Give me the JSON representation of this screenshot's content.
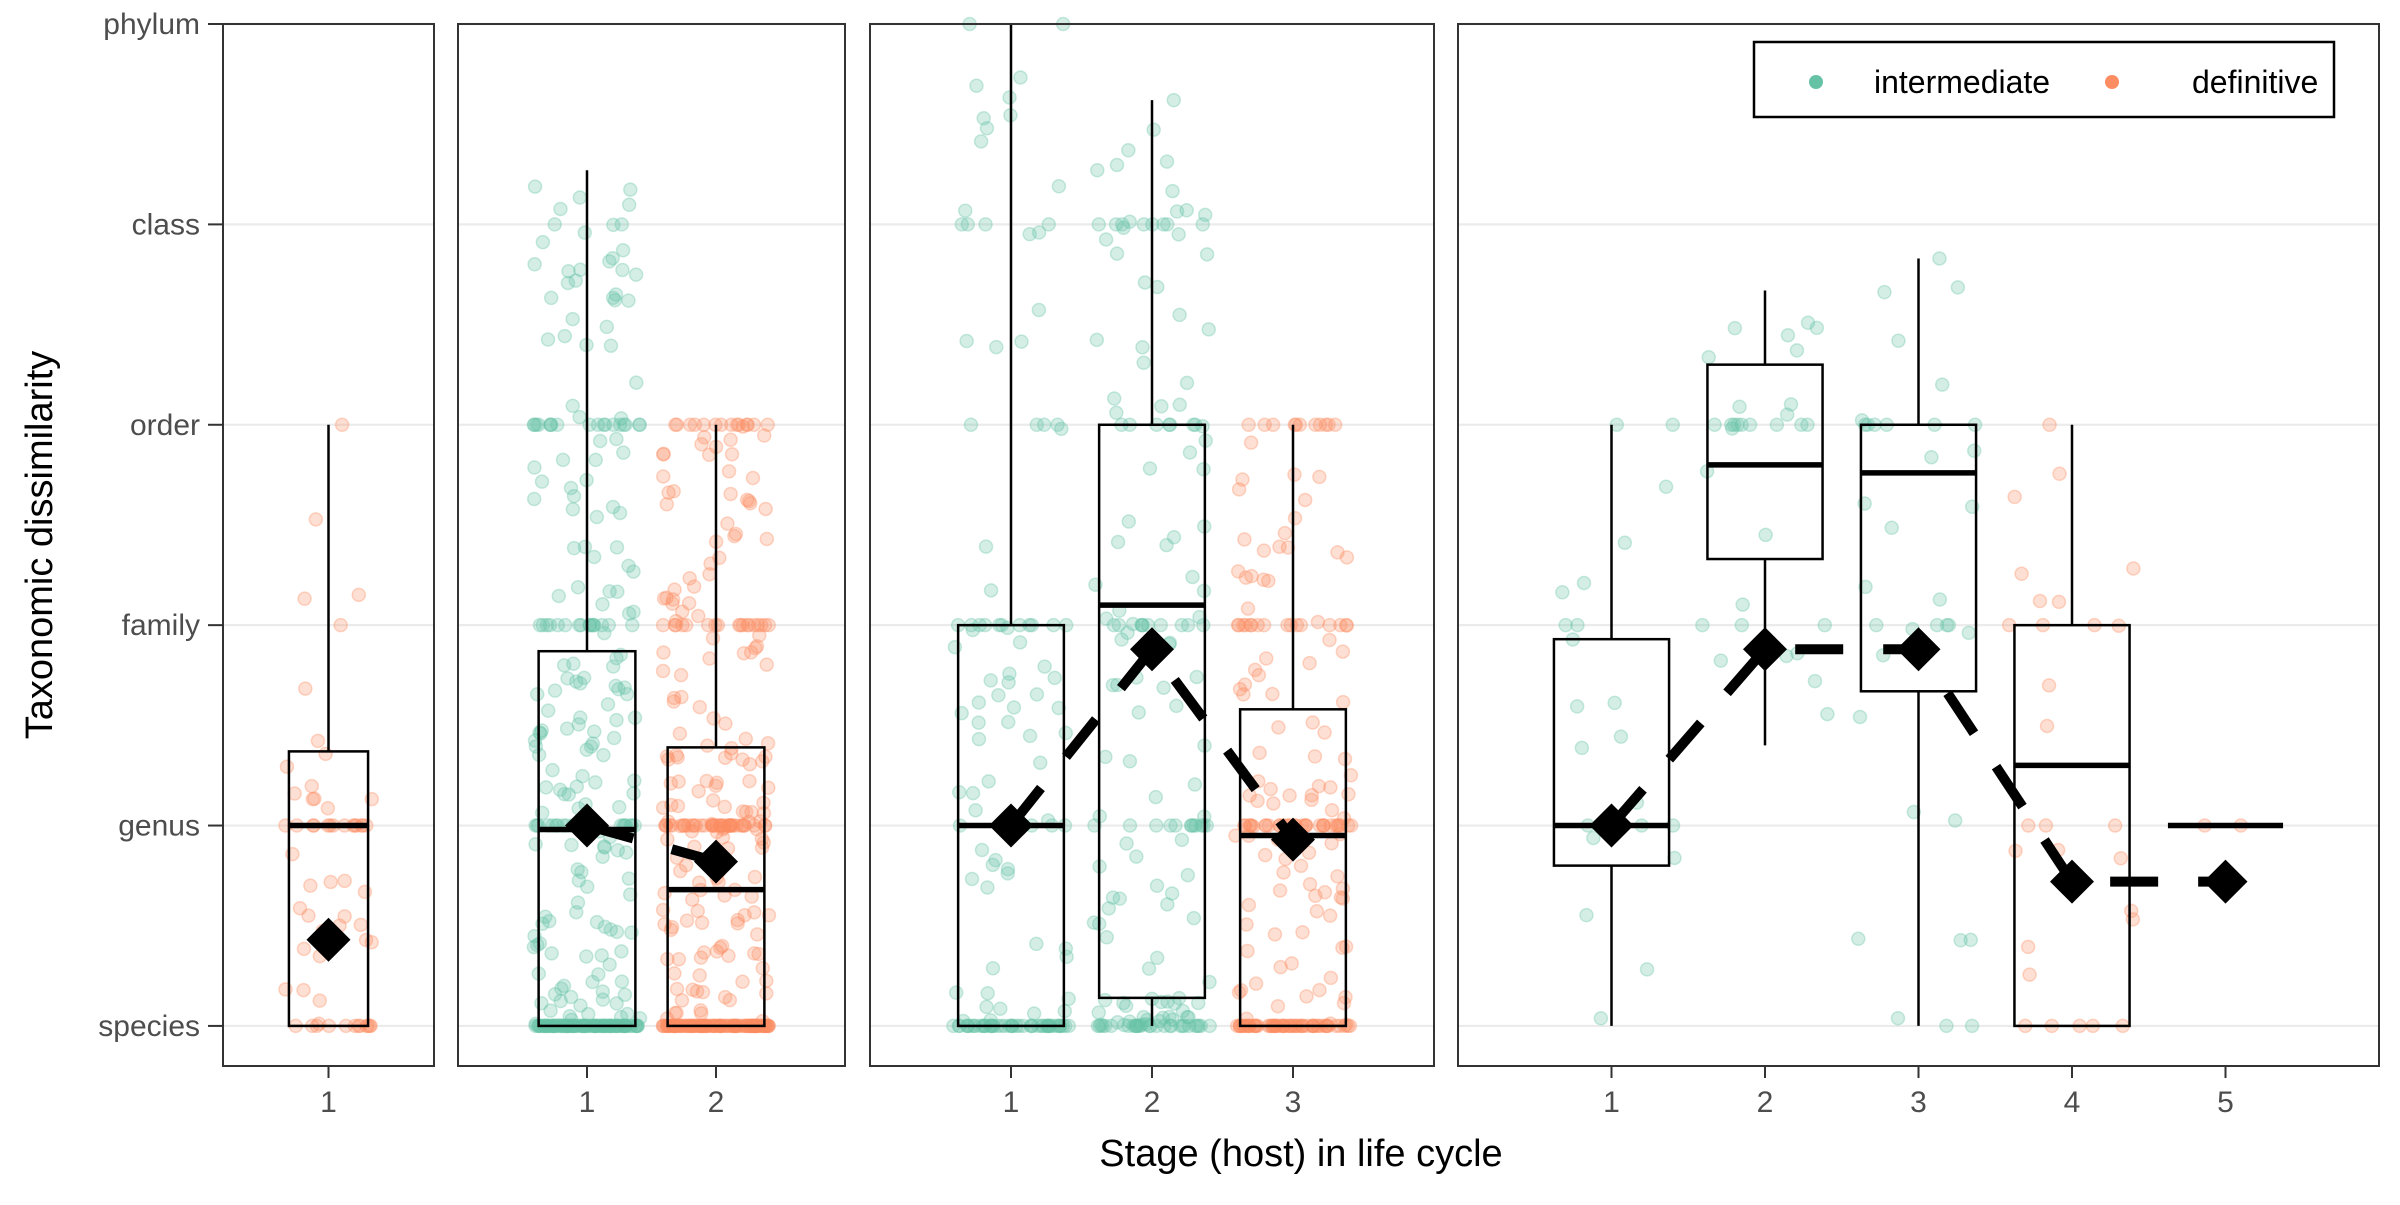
{
  "chart_data": {
    "type": "boxplot",
    "xlabel": "Stage (host) in life cycle",
    "ylabel": "Taxonomic dissimilarity",
    "y_levels": [
      "species",
      "genus",
      "family",
      "order",
      "class",
      "phylum"
    ],
    "ylim": [
      0.8,
      6.0
    ],
    "grid": "horizontal",
    "legend": {
      "placement": "top-right",
      "entries": [
        {
          "label": "intermediate",
          "color": "#66C2A5"
        },
        {
          "label": "definitive",
          "color": "#FC8D62"
        }
      ]
    },
    "panels": [
      {
        "stages": [
          {
            "x": "1",
            "type": "definitive",
            "q1": 1.0,
            "median": 2.0,
            "q3": 2.37,
            "lower": 1.0,
            "upper": 4.0,
            "mean": 1.43,
            "n": 60
          }
        ]
      },
      {
        "stages": [
          {
            "x": "1",
            "type": "intermediate",
            "q1": 1.0,
            "median": 1.98,
            "q3": 2.87,
            "lower": 1.0,
            "upper": 5.27,
            "mean": 2.0,
            "n": 320
          },
          {
            "x": "2",
            "type": "definitive",
            "q1": 1.0,
            "median": 1.68,
            "q3": 2.39,
            "lower": 1.0,
            "upper": 4.0,
            "mean": 1.82,
            "n": 340
          }
        ]
      },
      {
        "stages": [
          {
            "x": "1",
            "type": "intermediate",
            "q1": 1.0,
            "median": 2.0,
            "q3": 3.0,
            "lower": 1.0,
            "upper": 6.0,
            "mean": 2.0,
            "n": 140
          },
          {
            "x": "2",
            "type": "intermediate",
            "q1": 1.14,
            "median": 3.1,
            "q3": 4.0,
            "lower": 1.0,
            "upper": 5.62,
            "mean": 2.88,
            "n": 170
          },
          {
            "x": "3",
            "type": "definitive",
            "q1": 1.0,
            "median": 1.95,
            "q3": 2.58,
            "lower": 1.0,
            "upper": 4.0,
            "mean": 1.93,
            "n": 210
          }
        ]
      },
      {
        "stages": [
          {
            "x": "1",
            "type": "intermediate",
            "q1": 1.8,
            "median": 2.0,
            "q3": 2.93,
            "lower": 1.0,
            "upper": 4.0,
            "mean": 2.0,
            "n": 22
          },
          {
            "x": "2",
            "type": "intermediate",
            "q1": 3.33,
            "median": 3.8,
            "q3": 4.3,
            "lower": 2.4,
            "upper": 4.67,
            "mean": 2.88,
            "n": 30
          },
          {
            "x": "3",
            "type": "intermediate",
            "q1": 2.67,
            "median": 3.76,
            "q3": 4.0,
            "lower": 1.0,
            "upper": 4.83,
            "mean": 2.88,
            "n": 35
          },
          {
            "x": "4",
            "type": "definitive",
            "q1": 1.0,
            "median": 2.3,
            "q3": 3.0,
            "lower": 1.0,
            "upper": 4.0,
            "mean": 1.72,
            "n": 28
          },
          {
            "x": "5",
            "type": "definitive",
            "q1": 2.0,
            "median": 2.0,
            "q3": 2.0,
            "lower": 2.0,
            "upper": 2.0,
            "mean": 1.72,
            "n": 2
          }
        ]
      }
    ]
  }
}
